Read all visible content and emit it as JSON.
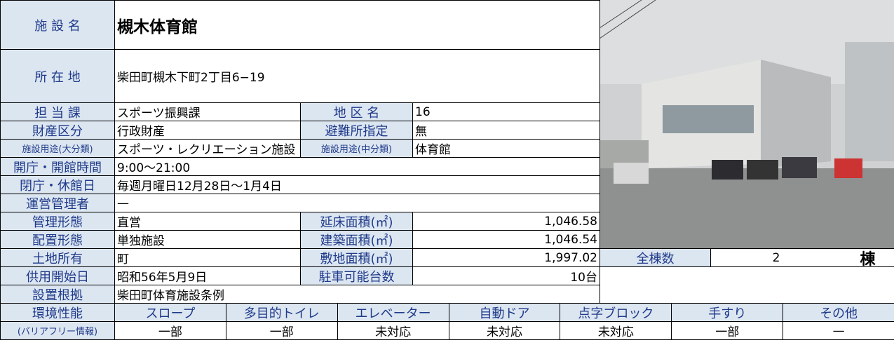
{
  "name": {
    "label": "施 設 名",
    "value": "槻木体育館"
  },
  "address": {
    "label": "所 在 地",
    "value": "柴田町槻木下町2丁目6−19"
  },
  "department": {
    "label": "担 当 課",
    "value": "スポーツ振興課"
  },
  "district": {
    "label": "地 区 名",
    "value": "16"
  },
  "property_class": {
    "label": "財産区分",
    "value": "行政財産"
  },
  "evacuation": {
    "label": "避難所指定",
    "value": "無"
  },
  "use_major": {
    "label": "施設用途(大分類)",
    "value": "スポーツ・レクリエーション施設"
  },
  "use_minor": {
    "label": "施設用途(中分類)",
    "value": "体育館"
  },
  "opening_hours": {
    "label": "開庁・開館時間",
    "value": "9:00〜21:00"
  },
  "closed_days": {
    "label": "閉庁・休館日",
    "value": "毎週月曜日12月28日〜1月4日"
  },
  "operator": {
    "label": "運営管理者",
    "value": "—"
  },
  "management": {
    "label": "管理形態",
    "value": "直営"
  },
  "total_floor_area": {
    "label": "延床面積(㎡)",
    "value": "1,046.58"
  },
  "layout": {
    "label": "配置形態",
    "value": "単独施設"
  },
  "building_area": {
    "label": "建築面積(㎡)",
    "value": "1,046.54"
  },
  "land": {
    "label": "土地所有",
    "value": "町"
  },
  "site_area": {
    "label": "敷地面積(㎡)",
    "value": "1,997.02"
  },
  "buildings": {
    "label": "全棟数",
    "value": "2",
    "unit": "棟"
  },
  "start_date": {
    "label": "供用開始日",
    "value": "昭和56年5月9日"
  },
  "parking": {
    "label": "駐車可能台数",
    "value": "10台"
  },
  "basis": {
    "label": "設置根拠",
    "value": "柴田町体育施設条例"
  },
  "environment": {
    "label": "環境性能",
    "sublabel": "(バリアフリー情報)",
    "items": [
      {
        "name": "スロープ",
        "value": "一部"
      },
      {
        "name": "多目的トイレ",
        "value": "一部"
      },
      {
        "name": "エレベーター",
        "value": "未対応"
      },
      {
        "name": "自動ドア",
        "value": "未対応"
      },
      {
        "name": "点字ブロック",
        "value": "未対応"
      },
      {
        "name": "手すり",
        "value": "一部"
      },
      {
        "name": "その他",
        "value": "—"
      }
    ]
  }
}
